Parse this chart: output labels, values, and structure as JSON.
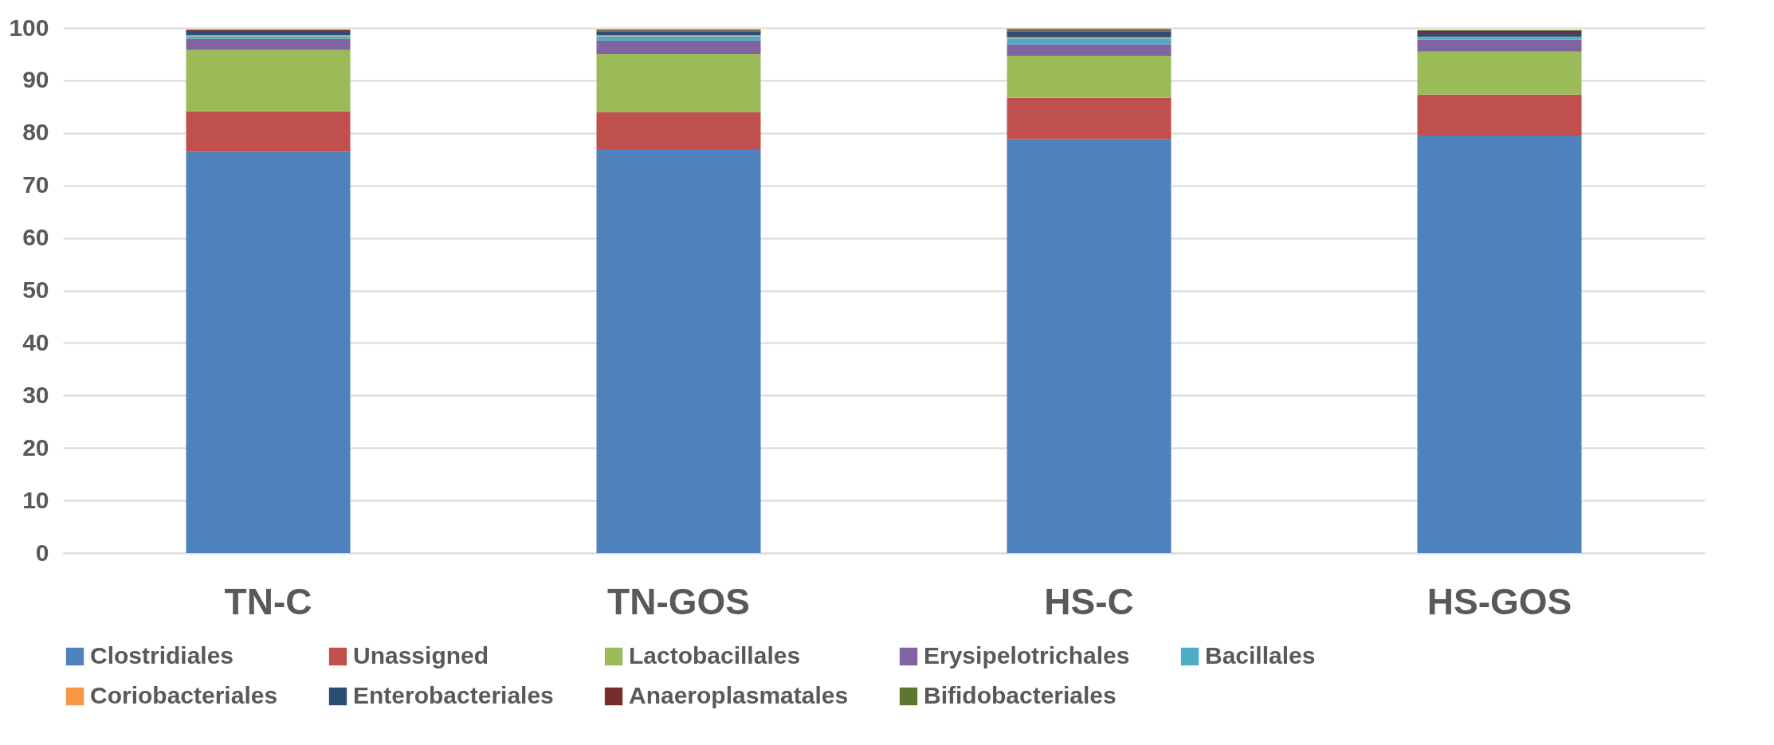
{
  "chart_data": {
    "type": "bar",
    "stacked": true,
    "categories": [
      "TN-C",
      "TN-GOS",
      "HS-C",
      "HS-GOS"
    ],
    "series": [
      {
        "name": "Clostridiales",
        "color": "#4f81bd",
        "values": [
          76.4,
          76.8,
          78.8,
          79.5
        ]
      },
      {
        "name": "Unassigned",
        "color": "#c0504d",
        "values": [
          7.7,
          7.1,
          7.9,
          7.8
        ]
      },
      {
        "name": "Lactobacillales",
        "color": "#9bbb59",
        "values": [
          11.7,
          11.1,
          8.0,
          8.2
        ]
      },
      {
        "name": "Erysipelotrichales",
        "color": "#8064a2",
        "values": [
          2.1,
          2.6,
          2.2,
          2.3
        ]
      },
      {
        "name": "Bacillales",
        "color": "#4bacc6",
        "values": [
          0.5,
          0.8,
          1.1,
          0.4
        ]
      },
      {
        "name": "Coriobacteriales",
        "color": "#f79646",
        "values": [
          0.2,
          0.2,
          0.2,
          0.1
        ]
      },
      {
        "name": "Enterobacteriales",
        "color": "#2c4d75",
        "values": [
          0.8,
          0.7,
          1.1,
          0.8
        ]
      },
      {
        "name": "Anaeroplasmatales",
        "color": "#772c2a",
        "values": [
          0.2,
          0.2,
          0.2,
          0.3
        ]
      },
      {
        "name": "Bifidobacteriales",
        "color": "#5f7530",
        "values": [
          0.1,
          0.2,
          0.3,
          0.2
        ]
      }
    ],
    "ylim": [
      0,
      100
    ],
    "yticks": [
      0,
      10,
      20,
      30,
      40,
      50,
      60,
      70,
      80,
      90,
      100
    ],
    "grid": "y",
    "legend": "bottom"
  }
}
